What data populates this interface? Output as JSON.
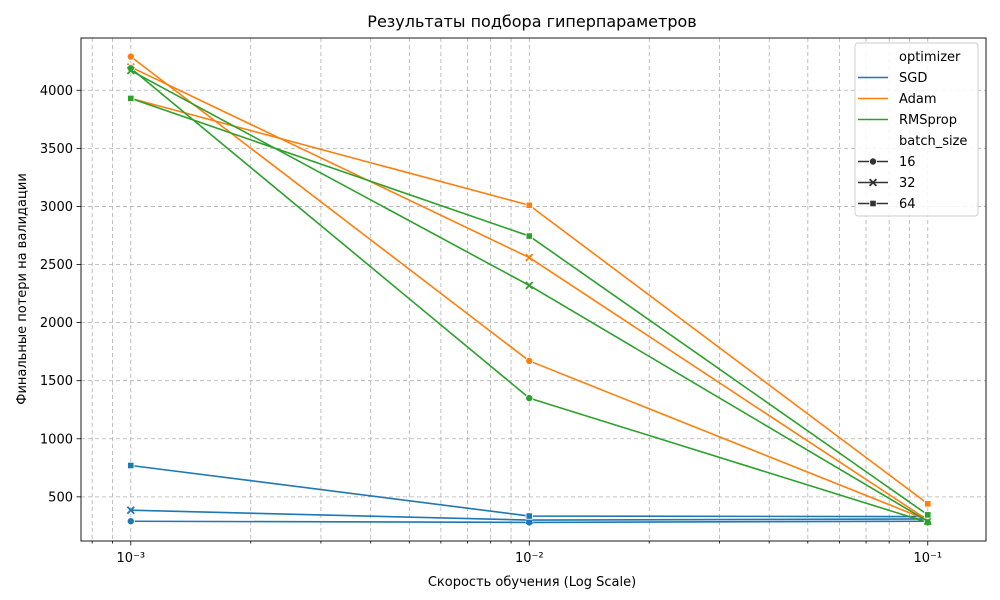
{
  "chart_data": {
    "type": "line",
    "title": "Результаты подбора гиперпараметров",
    "xlabel": "Скорость обучения (Log Scale)",
    "ylabel": "Финальные потери на валидации",
    "x_scale": "log",
    "x": [
      0.001,
      0.01,
      0.1
    ],
    "x_tick_labels": [
      "10⁻³",
      "10⁻²",
      "10⁻¹"
    ],
    "xlim": [
      0.00075,
      0.14
    ],
    "ylim": [
      120,
      4450
    ],
    "y_ticks": [
      500,
      1000,
      1500,
      2000,
      2500,
      3000,
      3500,
      4000
    ],
    "grid": true,
    "grid_minor_x": true,
    "legend": {
      "placement": "top-right",
      "hue_title": "optimizer",
      "style_title": "batch_size"
    },
    "optimizers": [
      {
        "name": "SGD",
        "color": "#1f77b4"
      },
      {
        "name": "Adam",
        "color": "#ff7f0e"
      },
      {
        "name": "RMSprop",
        "color": "#2ca02c"
      }
    ],
    "batch_sizes": [
      {
        "name": "16",
        "marker": "circle"
      },
      {
        "name": "32",
        "marker": "x"
      },
      {
        "name": "64",
        "marker": "square"
      }
    ],
    "series": [
      {
        "optimizer": "SGD",
        "batch_size": "16",
        "values": [
          290,
          280,
          290
        ]
      },
      {
        "optimizer": "SGD",
        "batch_size": "32",
        "values": [
          385,
          300,
          310
        ]
      },
      {
        "optimizer": "SGD",
        "batch_size": "64",
        "values": [
          770,
          335,
          330
        ]
      },
      {
        "optimizer": "Adam",
        "batch_size": "16",
        "values": [
          4290,
          1670,
          300
        ]
      },
      {
        "optimizer": "Adam",
        "batch_size": "32",
        "values": [
          4200,
          2560,
          300
        ]
      },
      {
        "optimizer": "Adam",
        "batch_size": "64",
        "values": [
          3930,
          3010,
          440
        ]
      },
      {
        "optimizer": "RMSprop",
        "batch_size": "16",
        "values": [
          4190,
          1350,
          280
        ]
      },
      {
        "optimizer": "RMSprop",
        "batch_size": "32",
        "values": [
          4170,
          2320,
          290
        ]
      },
      {
        "optimizer": "RMSprop",
        "batch_size": "64",
        "values": [
          3930,
          2745,
          345
        ]
      }
    ]
  }
}
